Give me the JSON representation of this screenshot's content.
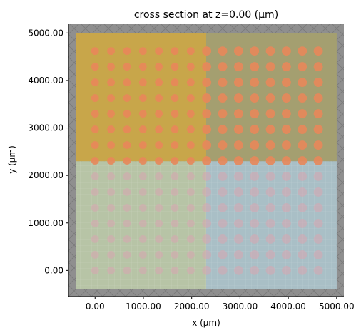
{
  "chart_data": {
    "type": "scatter",
    "title": "cross section at z=0.00 (μm)",
    "xlabel": "x (μm)",
    "ylabel": "y (μm)",
    "xlim": [
      -550,
      5150
    ],
    "ylim": [
      -550,
      5200
    ],
    "x_ticks": [
      0,
      1000,
      2000,
      3000,
      4000,
      5000
    ],
    "y_ticks": [
      0,
      1000,
      2000,
      3000,
      4000,
      5000
    ],
    "x_tick_labels": [
      "0.00",
      "1000.00",
      "2000.00",
      "3000.00",
      "4000.00",
      "5000.00"
    ],
    "y_tick_labels": [
      "0.00",
      "1000.00",
      "2000.00",
      "3000.00",
      "4000.00",
      "5000.00"
    ],
    "grid": false,
    "regions": [
      {
        "name": "outer-region",
        "x": [
          -550,
          5150
        ],
        "y": [
          -550,
          5200
        ],
        "color": "#8f8f8f"
      },
      {
        "name": "bottom-left-region",
        "x": [
          -400,
          2300
        ],
        "y": [
          -400,
          2300
        ],
        "color": "#b7c4a6"
      },
      {
        "name": "bottom-right-region",
        "x": [
          2300,
          5000
        ],
        "y": [
          -400,
          2300
        ],
        "color": "#a9bfc6"
      },
      {
        "name": "top-left-region",
        "x": [
          -400,
          2300
        ],
        "y": [
          2300,
          5000
        ],
        "color": "#c8a64a"
      },
      {
        "name": "top-right-region",
        "x": [
          2300,
          5000
        ],
        "y": [
          2300,
          5000
        ],
        "color": "#a49f70"
      }
    ],
    "particles": {
      "x_start": 0,
      "y_start": 0,
      "pitch": 330,
      "count_x": 15,
      "count_y": 15,
      "radius_left": 80,
      "radius_right": 95,
      "split_x": 2300,
      "split_y": 2300,
      "color_top": "#e8875a",
      "color_bottom": "#d8a6b0"
    }
  }
}
